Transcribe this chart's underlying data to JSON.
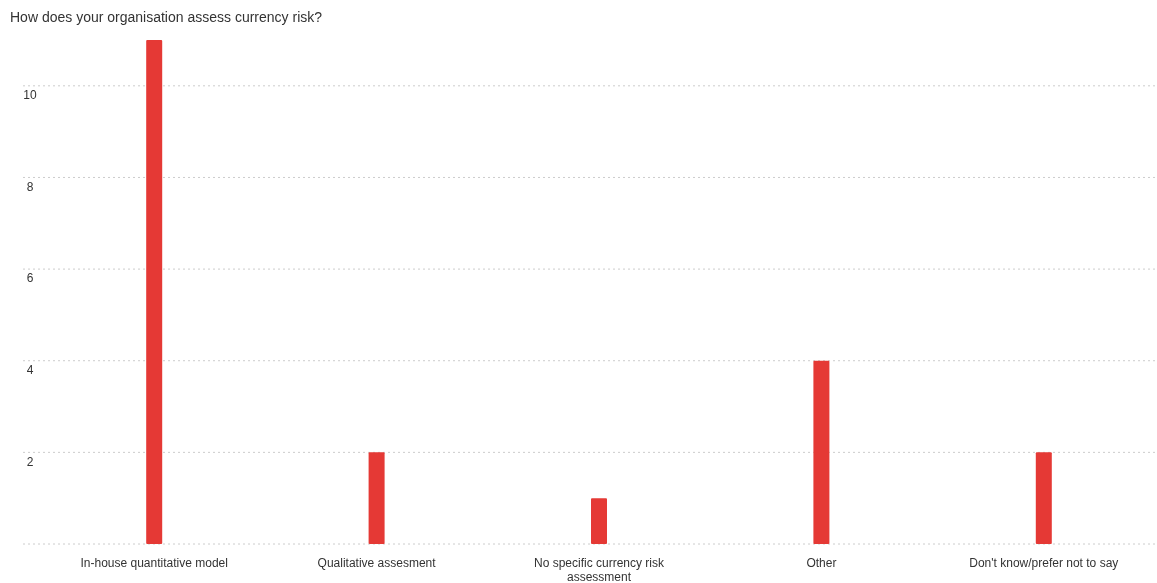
{
  "chart_data": {
    "type": "bar",
    "title": "How does your organisation assess currency risk?",
    "categories": [
      "In-house quantitative model",
      "Qualitative assesment",
      "No specific currency risk assessment",
      "Other",
      "Don't know/prefer not to say"
    ],
    "values": [
      11,
      2,
      1,
      4,
      2
    ],
    "color": "#e53935",
    "ylim": [
      0,
      11
    ],
    "yticks": [
      {
        "value": 0,
        "label": null
      },
      2,
      4,
      6,
      8,
      10
    ],
    "grid": "y"
  }
}
